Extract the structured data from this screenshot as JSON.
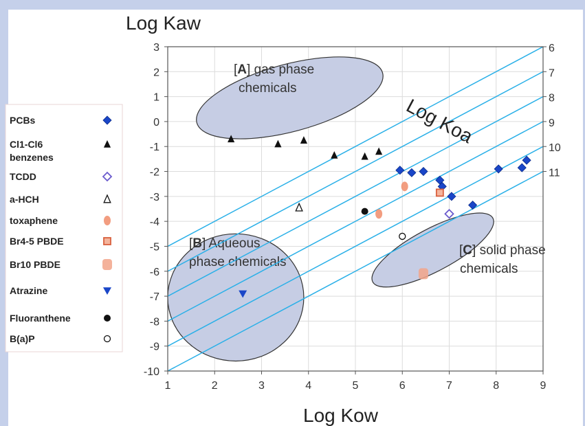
{
  "chart_data": {
    "type": "scatter",
    "ylabel": "Log Kaw",
    "xlabel": "Log Kow",
    "diag_label": "Log Koa",
    "xlim": [
      1,
      9
    ],
    "ylim": [
      -10,
      3
    ],
    "x_ticks": [
      "1",
      "2",
      "3",
      "4",
      "5",
      "6",
      "7",
      "8",
      "9"
    ],
    "y_ticks": [
      "3",
      "2",
      "1",
      "0",
      "-1",
      "-2",
      "-3",
      "-4",
      "-5",
      "-6",
      "-7",
      "-8",
      "-9",
      "-10"
    ],
    "koa_lines": [
      6,
      7,
      8,
      9,
      10,
      11
    ],
    "koa_labels": [
      "6",
      "7",
      "8",
      "9",
      "10",
      "11"
    ],
    "grid": true,
    "legend_position": "left",
    "regions": [
      {
        "tag": "A",
        "prefix": "[",
        "suffix": "]",
        "line1": "gas phase",
        "line2": "chemicals",
        "cx": 3.6,
        "cy": 0.95,
        "rx": 2.05,
        "ry": 1.35,
        "rot": -15
      },
      {
        "tag": "B",
        "prefix": "[",
        "suffix": "]",
        "line1": "Aqueous",
        "line2": "phase chemicals",
        "cx": 2.45,
        "cy": -7.05,
        "rx": 1.45,
        "ry": 2.55,
        "rot": 0
      },
      {
        "tag": "C",
        "prefix": "[",
        "suffix": "]",
        "line1": "solid phase",
        "line2": "chemicals",
        "cx": 6.65,
        "cy": -5.15,
        "rx": 1.45,
        "ry": 0.85,
        "rot": -28
      }
    ],
    "series": [
      {
        "name": "PCBs",
        "marker": "diamond",
        "color": "#1a46c8",
        "points": [
          [
            5.95,
            -1.95
          ],
          [
            6.2,
            -2.05
          ],
          [
            6.45,
            -2.0
          ],
          [
            6.8,
            -2.35
          ],
          [
            6.85,
            -2.6
          ],
          [
            7.05,
            -3.0
          ],
          [
            7.5,
            -3.35
          ],
          [
            8.05,
            -1.9
          ],
          [
            8.55,
            -1.85
          ],
          [
            8.65,
            -1.55
          ]
        ]
      },
      {
        "name": "Cl1-Cl6 benzenes",
        "marker": "triangle",
        "color": "#111111",
        "points": [
          [
            2.35,
            -0.7
          ],
          [
            3.35,
            -0.9
          ],
          [
            3.9,
            -0.75
          ],
          [
            4.55,
            -1.35
          ],
          [
            5.2,
            -1.4
          ],
          [
            5.5,
            -1.2
          ]
        ]
      },
      {
        "name": "TCDD",
        "marker": "diamond-open",
        "color": "#6a5acd",
        "points": [
          [
            7.0,
            -3.7
          ]
        ]
      },
      {
        "name": "a-HCH",
        "marker": "triangle-open",
        "color": "#111111",
        "points": [
          [
            3.8,
            -3.45
          ]
        ]
      },
      {
        "name": "toxaphene",
        "marker": "blob",
        "color": "#f08c6a",
        "points": [
          [
            5.5,
            -3.7
          ],
          [
            6.05,
            -2.6
          ]
        ]
      },
      {
        "name": "Br4-5 PBDE",
        "marker": "square",
        "color": "#d9603e",
        "points": [
          [
            6.8,
            -2.85
          ]
        ]
      },
      {
        "name": "Br10 PBDE",
        "marker": "blob-square",
        "color": "#f2a58a",
        "points": [
          [
            6.45,
            -6.1
          ]
        ]
      },
      {
        "name": "Atrazine",
        "marker": "triangle-down",
        "color": "#1a46c8",
        "points": [
          [
            2.6,
            -6.9
          ]
        ]
      },
      {
        "name": "Fluoranthene",
        "marker": "circle",
        "color": "#111111",
        "points": [
          [
            5.2,
            -3.6
          ]
        ]
      },
      {
        "name": "B(a)P",
        "marker": "circle-open",
        "color": "#111111",
        "points": [
          [
            6.0,
            -4.6
          ]
        ]
      }
    ]
  }
}
